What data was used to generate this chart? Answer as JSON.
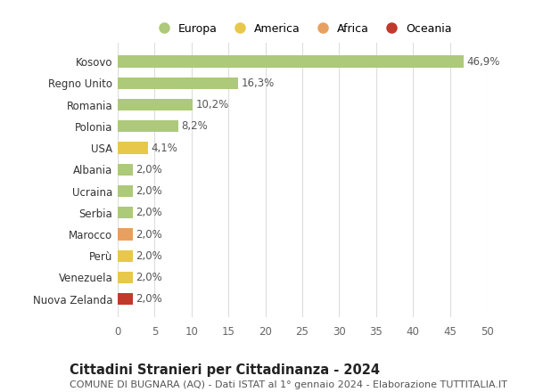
{
  "countries": [
    "Kosovo",
    "Regno Unito",
    "Romania",
    "Polonia",
    "USA",
    "Albania",
    "Ucraina",
    "Serbia",
    "Marocco",
    "Perù",
    "Venezuela",
    "Nuova Zelanda"
  ],
  "values": [
    46.9,
    16.3,
    10.2,
    8.2,
    4.1,
    2.0,
    2.0,
    2.0,
    2.0,
    2.0,
    2.0,
    2.0
  ],
  "labels": [
    "46,9%",
    "16,3%",
    "10,2%",
    "8,2%",
    "4,1%",
    "2,0%",
    "2,0%",
    "2,0%",
    "2,0%",
    "2,0%",
    "2,0%",
    "2,0%"
  ],
  "continents": [
    "Europa",
    "Europa",
    "Europa",
    "Europa",
    "America",
    "Europa",
    "Europa",
    "Europa",
    "Africa",
    "America",
    "America",
    "Oceania"
  ],
  "colors": {
    "Europa": "#adc97a",
    "America": "#e8c84a",
    "Africa": "#e8a060",
    "Oceania": "#c0392b"
  },
  "legend_order": [
    "Europa",
    "America",
    "Africa",
    "Oceania"
  ],
  "legend_colors": {
    "Europa": "#adc97a",
    "America": "#e8c84a",
    "Africa": "#e8a060",
    "Oceania": "#c0392b"
  },
  "xlim": [
    0,
    50
  ],
  "xticks": [
    0,
    5,
    10,
    15,
    20,
    25,
    30,
    35,
    40,
    45,
    50
  ],
  "title": "Cittadini Stranieri per Cittadinanza - 2024",
  "subtitle": "COMUNE DI BUGNARA (AQ) - Dati ISTAT al 1° gennaio 2024 - Elaborazione TUTTITALIA.IT",
  "background_color": "#ffffff",
  "grid_color": "#dddddd",
  "bar_height": 0.55,
  "label_fontsize": 8.5,
  "tick_fontsize": 8.5,
  "title_fontsize": 10.5,
  "subtitle_fontsize": 8.0
}
